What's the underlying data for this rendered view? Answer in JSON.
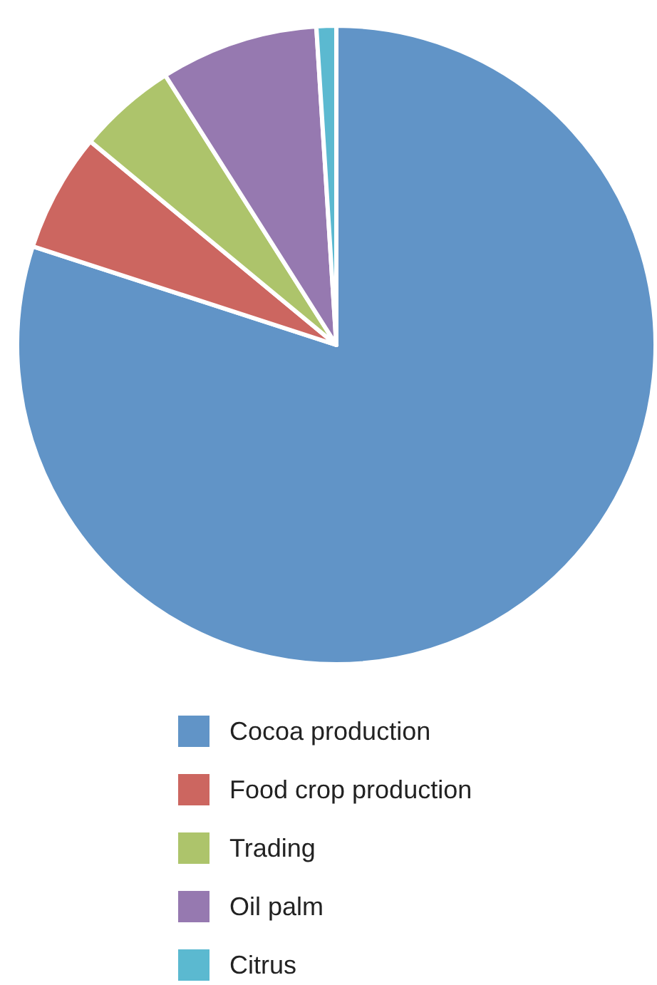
{
  "chart_data": {
    "type": "pie",
    "categories": [
      "Cocoa production",
      "Food crop production",
      "Trading",
      "Oil palm",
      "Citrus"
    ],
    "values": [
      80,
      6,
      5,
      8,
      1
    ],
    "colors": [
      "#6194c7",
      "#cc6660",
      "#adc46b",
      "#9679b0",
      "#5bb9d0"
    ],
    "legend": "bottom"
  }
}
